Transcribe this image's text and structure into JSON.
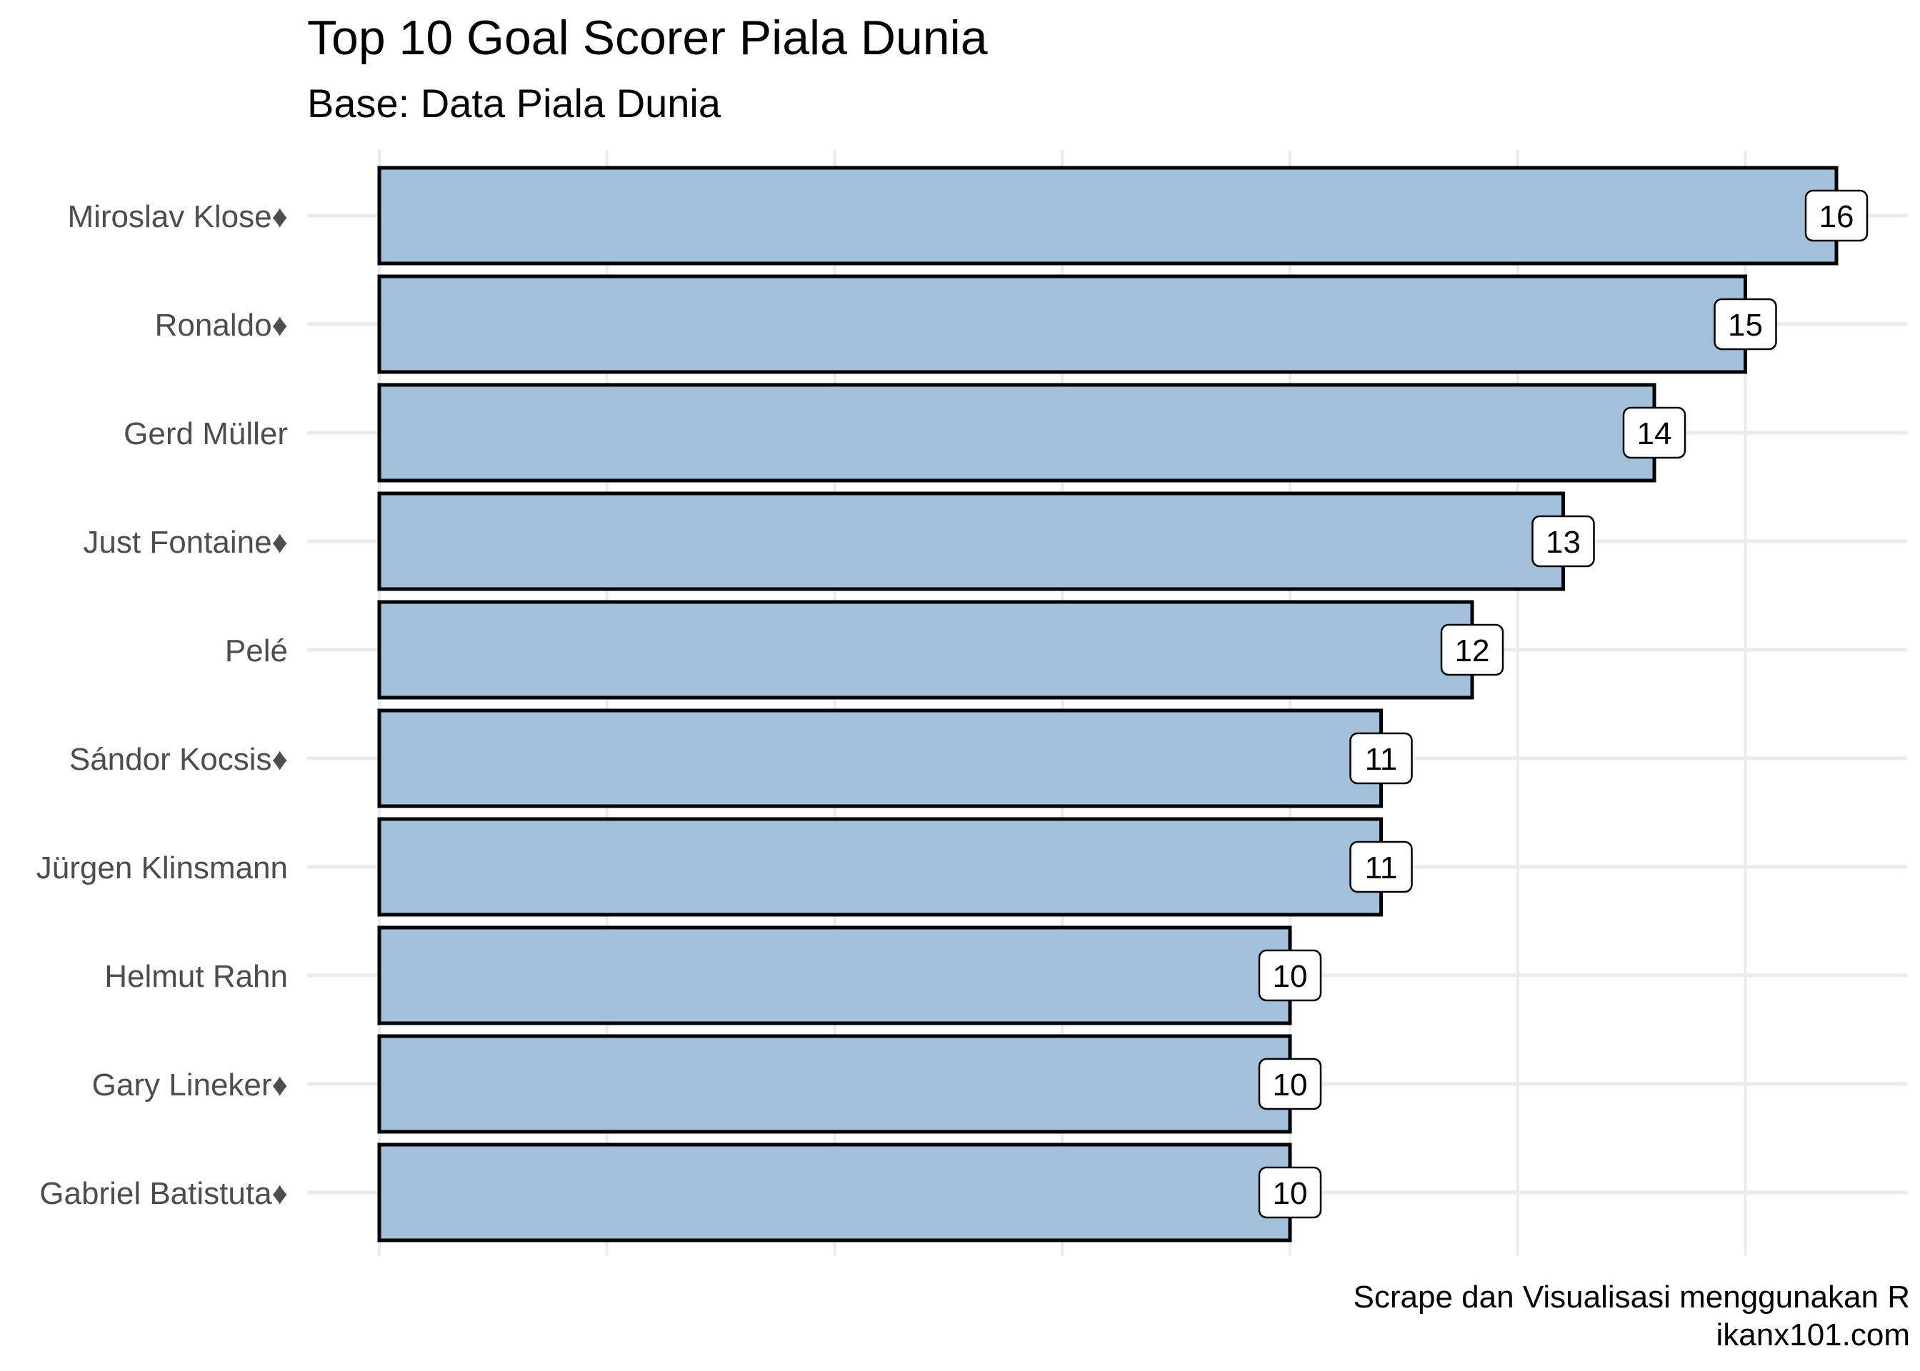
{
  "chart_data": {
    "type": "bar",
    "orientation": "horizontal",
    "title": "Top 10 Goal Scorer Piala Dunia",
    "subtitle": "Base: Data Piala Dunia",
    "caption": [
      "Scrape dan Visualisasi menggunakan R",
      "ikanx101.com"
    ],
    "xlabel": "",
    "ylabel": "",
    "categories": [
      "Miroslav Klose♦",
      "Ronaldo♦",
      "Gerd Müller",
      "Just Fontaine♦",
      "Pelé",
      "Sándor Kocsis♦",
      "Jürgen Klinsmann",
      "Helmut Rahn",
      "Gary Lineker♦",
      "Gabriel Batistuta♦"
    ],
    "values": [
      16,
      15,
      14,
      13,
      12,
      11,
      11,
      10,
      10,
      10
    ],
    "xlim": [
      0,
      16.8
    ],
    "x_gridlines": [
      0,
      2.5,
      5,
      7.5,
      10,
      12.5,
      15
    ],
    "data_labels": true,
    "grid": true,
    "legend": "none",
    "colors": {
      "bar_fill": "#a3c0db",
      "bar_outline": "#000000",
      "grid": "#ebebeb",
      "label_box": "#ffffff"
    }
  }
}
